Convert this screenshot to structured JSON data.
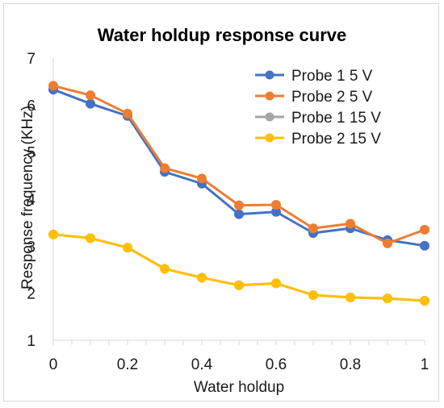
{
  "chart_data": {
    "type": "line",
    "title": "Water holdup response curve",
    "xlabel": "Water holdup",
    "ylabel": "Response frequency (KHz)",
    "xlim": [
      0,
      1
    ],
    "ylim": [
      1,
      7
    ],
    "x_ticks": [
      "0",
      "0.2",
      "0.4",
      "0.6",
      "0.8",
      "1"
    ],
    "y_ticks": [
      "1",
      "2",
      "3",
      "4",
      "5",
      "6",
      "7"
    ],
    "x": [
      0,
      0.1,
      0.2,
      0.3,
      0.4,
      0.5,
      0.6,
      0.7,
      0.8,
      0.9,
      1.0
    ],
    "grid": false,
    "legend_position": "top-right",
    "series": [
      {
        "name": "Probe 1 5 V",
        "color": "#4472C4",
        "values": [
          6.33,
          6.03,
          5.77,
          4.58,
          4.33,
          3.68,
          3.73,
          3.28,
          3.38,
          3.13,
          3.01
        ]
      },
      {
        "name": "Probe 2 5 V",
        "color": "#ED7D31",
        "values": [
          6.41,
          6.21,
          5.82,
          4.66,
          4.44,
          3.87,
          3.88,
          3.38,
          3.48,
          3.06,
          3.35
        ]
      },
      {
        "name": "Probe 1 15 V",
        "color": "#A5A5A5",
        "values": [
          3.25,
          3.17,
          2.97,
          2.52,
          2.33,
          2.17,
          2.21,
          1.96,
          1.91,
          1.89,
          1.84
        ]
      },
      {
        "name": "Probe 2 15 V",
        "color": "#FFC000",
        "values": [
          3.25,
          3.17,
          2.97,
          2.52,
          2.33,
          2.17,
          2.21,
          1.96,
          1.91,
          1.89,
          1.84
        ]
      }
    ]
  }
}
